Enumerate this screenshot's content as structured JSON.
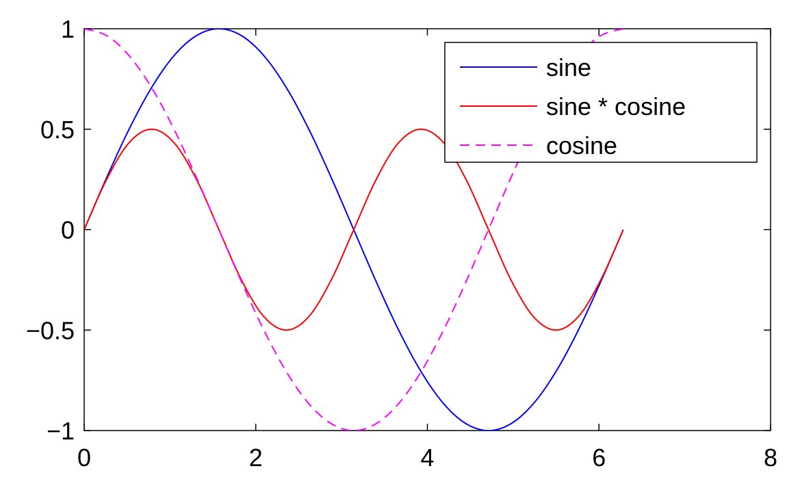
{
  "chart_data": {
    "type": "line",
    "title": "",
    "xlabel": "",
    "ylabel": "",
    "xlim": [
      0,
      8
    ],
    "ylim": [
      -1,
      1
    ],
    "x_ticks": [
      0,
      2,
      4,
      6,
      8
    ],
    "y_ticks": [
      -1,
      -0.5,
      0,
      0.5,
      1
    ],
    "x_tick_labels": [
      "0",
      "2",
      "4",
      "6",
      "8"
    ],
    "y_tick_labels": [
      "−1",
      "−0.5",
      "0",
      "0.5",
      "1"
    ],
    "grid": false,
    "legend_position": "top-right",
    "series": [
      {
        "name": "sine",
        "color": "#0000ff",
        "style": "solid",
        "x": [
          0,
          0.2618,
          0.5236,
          0.7854,
          1.0472,
          1.309,
          1.5708,
          1.8326,
          2.0944,
          2.3562,
          2.618,
          2.8798,
          3.1416,
          3.4034,
          3.6652,
          3.927,
          4.1888,
          4.4506,
          4.7124,
          4.9742,
          5.236,
          5.4978,
          5.7596,
          6.0214,
          6.2832
        ],
        "y": [
          0,
          0.2588,
          0.5,
          0.7071,
          0.866,
          0.9659,
          1,
          0.9659,
          0.866,
          0.7071,
          0.5,
          0.2588,
          0,
          -0.2588,
          -0.5,
          -0.7071,
          -0.866,
          -0.9659,
          -1,
          -0.9659,
          -0.866,
          -0.7071,
          -0.5,
          -0.2588,
          0
        ]
      },
      {
        "name": "sine * cosine",
        "color": "#ff0000",
        "style": "solid",
        "x": [
          0,
          0.2618,
          0.5236,
          0.7854,
          1.0472,
          1.309,
          1.5708,
          1.8326,
          2.0944,
          2.3562,
          2.618,
          2.8798,
          3.1416,
          3.4034,
          3.6652,
          3.927,
          4.1888,
          4.4506,
          4.7124,
          4.9742,
          5.236,
          5.4978,
          5.7596,
          6.0214,
          6.2832
        ],
        "y": [
          0,
          0.25,
          0.433,
          0.5,
          0.433,
          0.25,
          0,
          -0.25,
          -0.433,
          -0.5,
          -0.433,
          -0.25,
          0,
          0.25,
          0.433,
          0.5,
          0.433,
          0.25,
          0,
          -0.25,
          -0.433,
          -0.5,
          -0.433,
          -0.25,
          0
        ]
      },
      {
        "name": "cosine",
        "color": "#ff00ff",
        "style": "dashed",
        "x": [
          0,
          0.2618,
          0.5236,
          0.7854,
          1.0472,
          1.309,
          1.5708,
          1.8326,
          2.0944,
          2.3562,
          2.618,
          2.8798,
          3.1416,
          3.4034,
          3.6652,
          3.927,
          4.1888,
          4.4506,
          4.7124,
          4.9742,
          5.236,
          5.4978,
          5.7596,
          6.0214,
          6.2832
        ],
        "y": [
          1,
          0.9659,
          0.866,
          0.7071,
          0.5,
          0.2588,
          0,
          -0.2588,
          -0.5,
          -0.7071,
          -0.866,
          -0.9659,
          -1,
          -0.9659,
          -0.866,
          -0.7071,
          -0.5,
          -0.2588,
          0,
          0.2588,
          0.5,
          0.7071,
          0.866,
          0.9659,
          1
        ]
      }
    ],
    "legend_order": [
      "sine",
      "sine * cosine",
      "cosine"
    ]
  }
}
